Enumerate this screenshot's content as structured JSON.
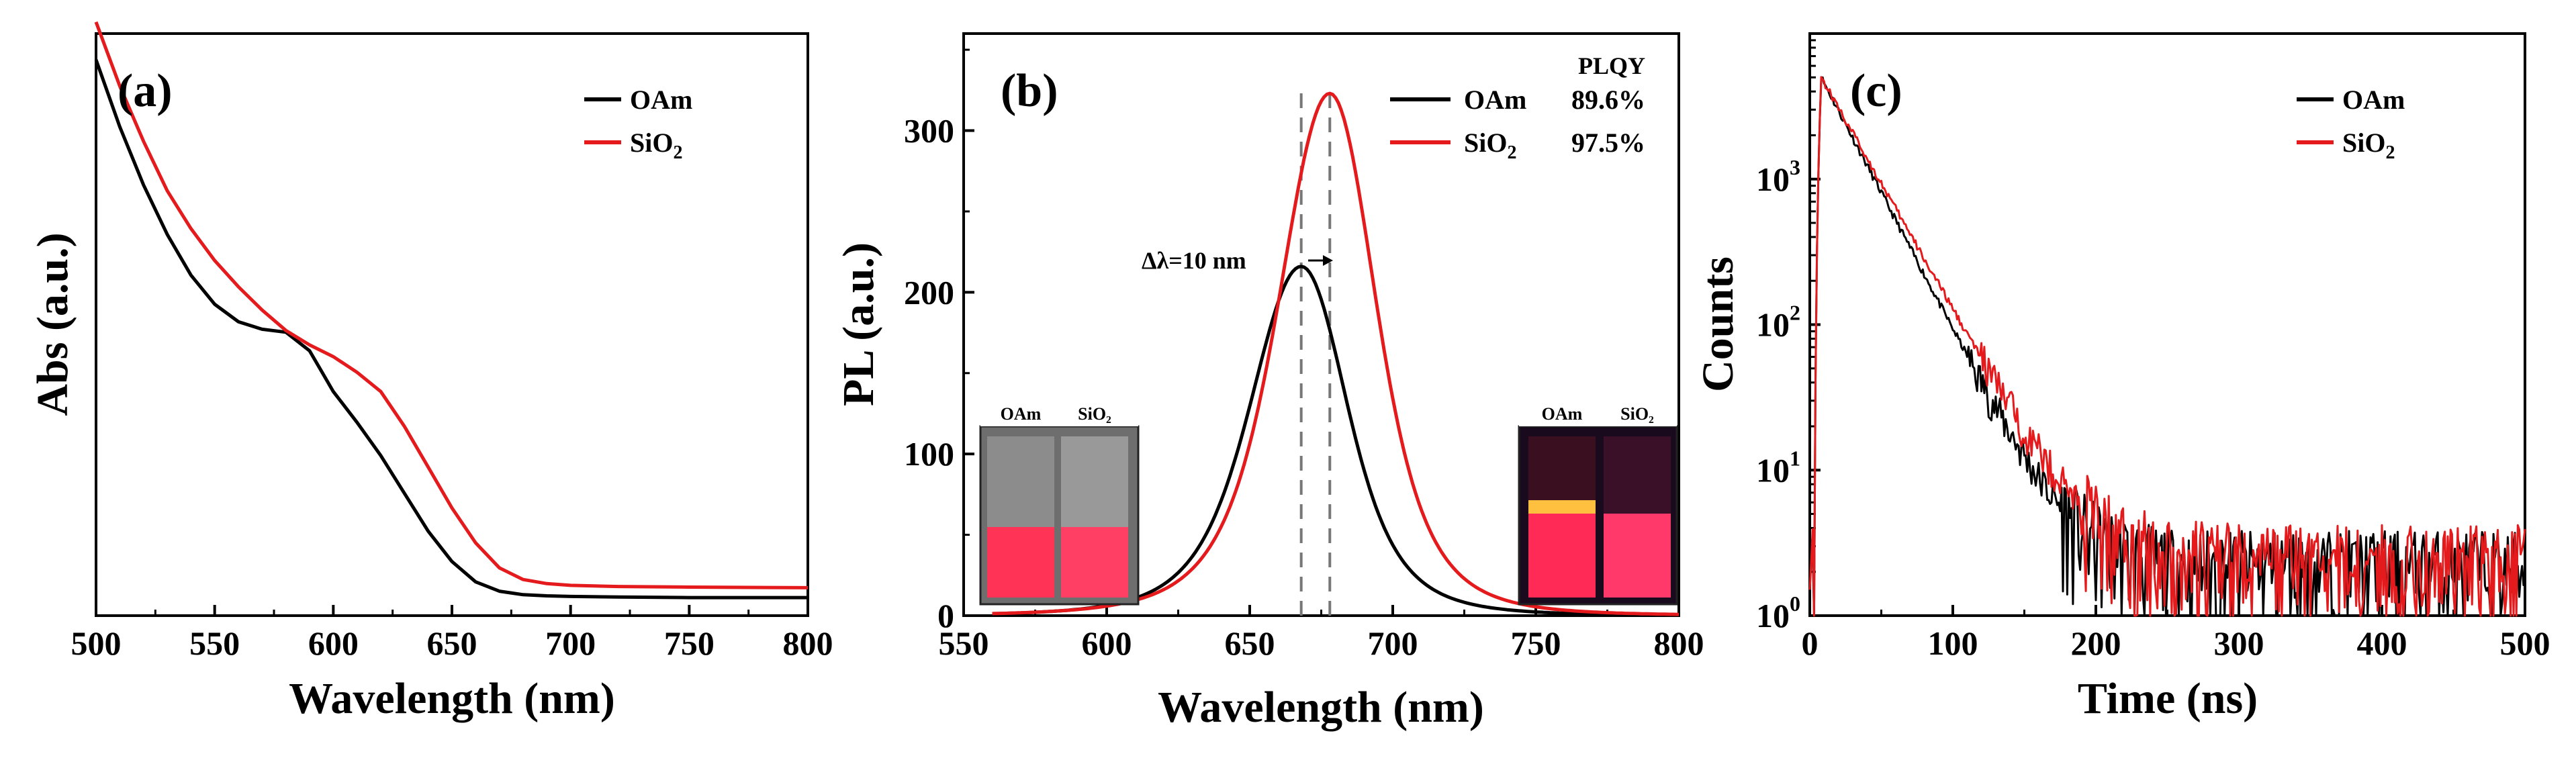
{
  "colors": {
    "OAm": "#000000",
    "SiO2": "#e41a1c"
  },
  "chart_data": [
    {
      "panel": "(a)",
      "type": "line",
      "xlabel": "Wavelength (nm)",
      "ylabel": "Abs (a.u.)",
      "xlim": [
        500,
        800
      ],
      "ylim": [
        0,
        1.0
      ],
      "xticks": [
        500,
        550,
        600,
        650,
        700,
        750,
        800
      ],
      "yticks": [],
      "legend": {
        "position": "top-right"
      },
      "series": [
        {
          "name": "OAm",
          "color": "#000000",
          "x": [
            500,
            510,
            520,
            530,
            540,
            550,
            560,
            570,
            580,
            590,
            595,
            600,
            610,
            620,
            630,
            640,
            650,
            660,
            670,
            680,
            690,
            700,
            720,
            750,
            800
          ],
          "y": [
            0.955,
            0.84,
            0.74,
            0.655,
            0.585,
            0.535,
            0.505,
            0.492,
            0.487,
            0.455,
            0.42,
            0.385,
            0.332,
            0.275,
            0.21,
            0.145,
            0.093,
            0.058,
            0.042,
            0.036,
            0.034,
            0.033,
            0.032,
            0.031,
            0.031
          ]
        },
        {
          "name": "SiO2",
          "color": "#e41a1c",
          "x": [
            500,
            510,
            520,
            530,
            540,
            550,
            560,
            570,
            580,
            590,
            600,
            610,
            620,
            630,
            640,
            650,
            660,
            670,
            680,
            690,
            700,
            720,
            750,
            800
          ],
          "y": [
            1.02,
            0.91,
            0.815,
            0.73,
            0.665,
            0.61,
            0.565,
            0.525,
            0.49,
            0.465,
            0.445,
            0.418,
            0.385,
            0.325,
            0.255,
            0.185,
            0.125,
            0.082,
            0.062,
            0.055,
            0.052,
            0.05,
            0.049,
            0.048
          ]
        }
      ]
    },
    {
      "panel": "(b)",
      "type": "line",
      "xlabel": "Wavelength (nm)",
      "ylabel": "PL (a.u.)",
      "xlim": [
        550,
        800
      ],
      "ylim": [
        0,
        360
      ],
      "xticks": [
        550,
        600,
        650,
        700,
        750,
        800
      ],
      "yticks": [
        0,
        100,
        200,
        300
      ],
      "legend": {
        "position": "top-right",
        "header": "PLQY"
      },
      "series": [
        {
          "name": "OAm",
          "plqy": "89.6%",
          "color": "#000000",
          "peak": 668,
          "peak_value": 216,
          "fwhm": 36
        },
        {
          "name": "SiO2",
          "plqy": "97.5%",
          "color": "#e41a1c",
          "peak": 678,
          "peak_value": 323,
          "fwhm": 36
        }
      ],
      "dashed_lines_x": [
        668,
        678
      ],
      "annotation": "Δλ=10 nm",
      "insets": [
        {
          "labels": [
            "OAm",
            "SiO₂"
          ],
          "condition": "ambient light"
        },
        {
          "labels": [
            "OAm",
            "SiO₂"
          ],
          "condition": "UV light"
        }
      ]
    },
    {
      "panel": "(c)",
      "type": "line",
      "xlabel": "Time (ns)",
      "ylabel": "Counts",
      "xlim": [
        0,
        500
      ],
      "ylim": [
        1,
        10000
      ],
      "yscale": "log",
      "xticks": [
        0,
        100,
        200,
        300,
        400,
        500
      ],
      "legend": {
        "position": "top-right"
      },
      "series": [
        {
          "name": "OAm",
          "color": "#000000",
          "peak_time": 8,
          "peak_counts": 5000,
          "decay_tau_ns": 23,
          "floor_counts": 2.2
        },
        {
          "name": "SiO2",
          "color": "#e41a1c",
          "peak_time": 8,
          "peak_counts": 5000,
          "decay_tau_ns": 25,
          "floor_counts": 2.4
        }
      ]
    }
  ],
  "legend_labels": {
    "oam": "OAm",
    "sio2_main": "SiO",
    "sio2_sub": "2"
  }
}
